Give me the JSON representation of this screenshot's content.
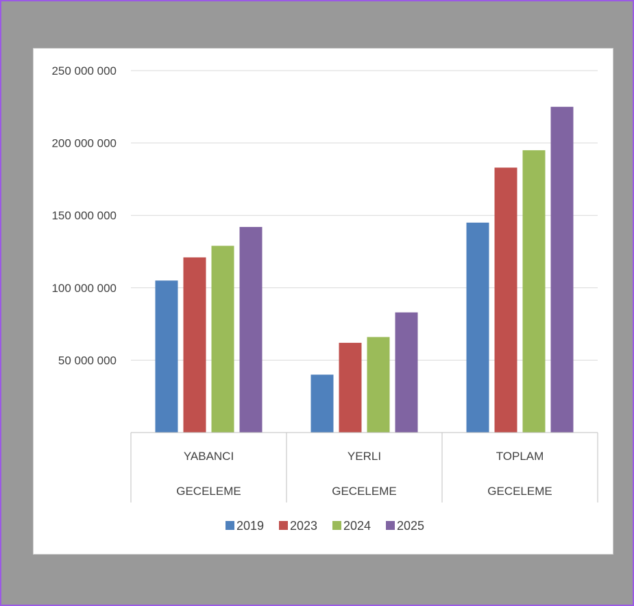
{
  "chart_data": {
    "type": "bar",
    "categories": [
      [
        "YABANCI",
        "GECELEME"
      ],
      [
        "YERLI",
        "GECELEME"
      ],
      [
        "TOPLAM",
        "GECELEME"
      ]
    ],
    "series": [
      {
        "name": "2019",
        "color": "#4f81bd",
        "values": [
          105000000,
          40000000,
          145000000
        ]
      },
      {
        "name": "2023",
        "color": "#c0504d",
        "values": [
          121000000,
          62000000,
          183000000
        ]
      },
      {
        "name": "2024",
        "color": "#9bbb59",
        "values": [
          129000000,
          66000000,
          195000000
        ]
      },
      {
        "name": "2025",
        "color": "#8064a2",
        "values": [
          142000000,
          83000000,
          225000000
        ]
      }
    ],
    "ylim": [
      0,
      250000000
    ],
    "yticks": [
      50000000,
      100000000,
      150000000,
      200000000,
      250000000
    ],
    "ytick_labels": [
      "50 000 000",
      "100 000 000",
      "150 000 000",
      "200 000 000",
      "250 000 000"
    ],
    "grid": true,
    "legend": "bottom",
    "title": "",
    "xlabel": "",
    "ylabel": ""
  }
}
